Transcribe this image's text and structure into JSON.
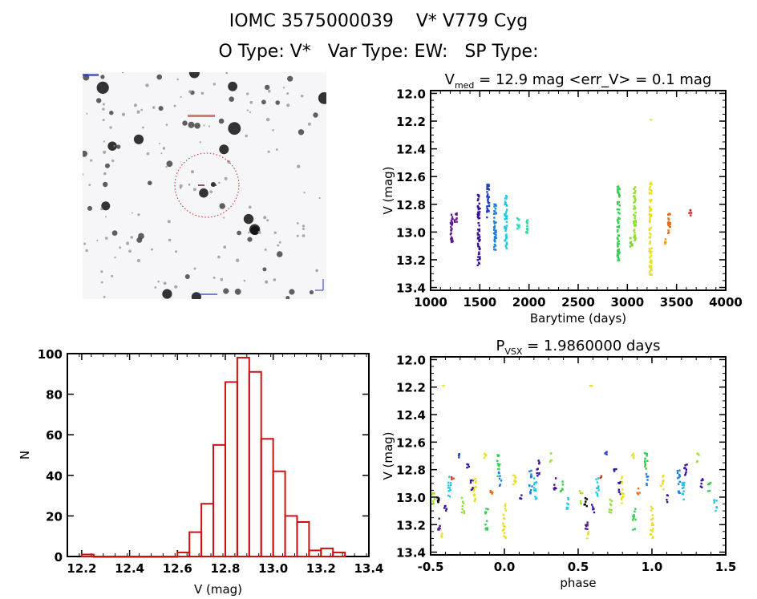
{
  "header": {
    "title": "IOMC 3575000039    V* V779 Cyg",
    "subtitle": "O Type: V*   Var Type: EW:   SP Type:"
  },
  "sky_image": {
    "description": "DSS finder chart (inverted grayscale) with red dotted circle around target",
    "marker_color": "#cc2222",
    "annotation_color": "#2233aa"
  },
  "chart_data": [
    {
      "type": "scatter",
      "id": "light-curve",
      "title_main": "V",
      "title_sub": "med",
      "title_rest": " = 12.9 mag <err_V> = 0.1 mag",
      "xlabel": "Barytime (days)",
      "ylabel": "V (mag)",
      "xlim": [
        1000,
        4000
      ],
      "ylim": [
        13.42,
        11.98
      ],
      "xticks": [
        "1000",
        "1500",
        "2000",
        "2500",
        "3000",
        "3500",
        "4000"
      ],
      "yticks": [
        "12.0",
        "12.2",
        "12.4",
        "12.6",
        "12.8",
        "13.0",
        "13.2",
        "13.4"
      ],
      "groups": [
        {
          "x": 1215,
          "ymin": 12.87,
          "ymax": 13.08,
          "color": "#5a1a8a"
        },
        {
          "x": 1255,
          "ymin": 12.86,
          "ymax": 12.93,
          "color": "#6a1a8a"
        },
        {
          "x": 1490,
          "ymin": 12.73,
          "ymax": 13.24,
          "color": "#3a10a0"
        },
        {
          "x": 1585,
          "ymin": 12.65,
          "ymax": 12.92,
          "color": "#2040c0"
        },
        {
          "x": 1655,
          "ymin": 12.79,
          "ymax": 13.14,
          "color": "#1a80e0"
        },
        {
          "x": 1765,
          "ymin": 12.73,
          "ymax": 13.12,
          "color": "#20c8e8"
        },
        {
          "x": 1890,
          "ymin": 12.9,
          "ymax": 12.98,
          "color": "#30d8c0"
        },
        {
          "x": 1975,
          "ymin": 12.91,
          "ymax": 13.01,
          "color": "#30d8a0"
        },
        {
          "x": 2910,
          "ymin": 12.67,
          "ymax": 13.23,
          "color": "#30d050"
        },
        {
          "x": 3040,
          "ymin": 13.04,
          "ymax": 13.12,
          "color": "#70d830"
        },
        {
          "x": 3075,
          "ymin": 12.67,
          "ymax": 13.06,
          "color": "#90e030"
        },
        {
          "x": 3235,
          "ymin": 12.64,
          "ymax": 13.31,
          "color": "#e8e020"
        },
        {
          "x": 3390,
          "ymin": 13.05,
          "ymax": 13.1,
          "color": "#f0a020"
        },
        {
          "x": 3425,
          "ymin": 12.86,
          "ymax": 13.02,
          "color": "#e07020"
        },
        {
          "x": 3640,
          "ymin": 12.84,
          "ymax": 12.88,
          "color": "#d02020"
        }
      ],
      "outlier": {
        "x": 3240,
        "y": 12.19,
        "color": "#e8e020"
      }
    },
    {
      "type": "bar",
      "id": "histogram",
      "xlabel": "V (mag)",
      "ylabel": "N",
      "xlim": [
        12.14,
        13.4
      ],
      "ylim": [
        0,
        100
      ],
      "xticks": [
        "12.2",
        "12.4",
        "12.6",
        "12.8",
        "13.0",
        "13.2",
        "13.4"
      ],
      "yticks": [
        "0",
        "20",
        "40",
        "60",
        "80",
        "100"
      ],
      "bin_width": 0.05,
      "bin_starts": [
        12.2,
        12.25,
        12.3,
        12.35,
        12.4,
        12.45,
        12.5,
        12.55,
        12.6,
        12.65,
        12.7,
        12.75,
        12.8,
        12.85,
        12.9,
        12.95,
        13.0,
        13.05,
        13.1,
        13.15,
        13.2,
        13.25
      ],
      "values": [
        1,
        0,
        0,
        0,
        0,
        0,
        0,
        0,
        2,
        12,
        26,
        55,
        86,
        98,
        91,
        58,
        42,
        20,
        17,
        3,
        4,
        2
      ],
      "color": "#cc1111"
    },
    {
      "type": "scatter",
      "id": "phase-curve",
      "title_main": "P",
      "title_sub": "VSX",
      "title_rest": " = 1.9860000 days",
      "xlabel": "phase",
      "ylabel": "V (mag)",
      "xlim": [
        -0.5,
        1.5
      ],
      "ylim": [
        13.42,
        11.98
      ],
      "xticks": [
        "-0.5",
        "0.0",
        "0.5",
        "1.0",
        "1.5"
      ],
      "yticks": [
        "12.0",
        "12.2",
        "12.4",
        "12.6",
        "12.8",
        "13.0",
        "13.2",
        "13.4"
      ],
      "period_days": 1.986,
      "clusters": [
        {
          "phase": -0.48,
          "ymin": 12.95,
          "ymax": 13.05,
          "color": "#a0e030"
        },
        {
          "phase": -0.45,
          "ymin": 13.0,
          "ymax": 13.08,
          "color": "#000000"
        },
        {
          "phase": -0.44,
          "ymin": 13.15,
          "ymax": 13.25,
          "color": "#5a1a8a"
        },
        {
          "phase": -0.43,
          "ymin": 13.25,
          "ymax": 13.3,
          "color": "#e8e020"
        },
        {
          "phase": -0.41,
          "ymin": 12.19,
          "ymax": 12.19,
          "color": "#e8e020"
        },
        {
          "phase": -0.4,
          "ymin": 13.05,
          "ymax": 13.12,
          "color": "#3a10a0"
        },
        {
          "phase": -0.37,
          "ymin": 12.84,
          "ymax": 13.0,
          "color": "#20c8e8"
        },
        {
          "phase": -0.35,
          "ymin": 12.83,
          "ymax": 12.87,
          "color": "#d04020"
        },
        {
          "phase": -0.31,
          "ymin": 12.66,
          "ymax": 12.72,
          "color": "#2040c0"
        },
        {
          "phase": -0.28,
          "ymin": 13.0,
          "ymax": 13.12,
          "color": "#90e030"
        },
        {
          "phase": -0.25,
          "ymin": 12.76,
          "ymax": 12.82,
          "color": "#3a10a0"
        },
        {
          "phase": -0.22,
          "ymin": 12.86,
          "ymax": 12.98,
          "color": "#3a10a0"
        },
        {
          "phase": -0.2,
          "ymin": 12.85,
          "ymax": 13.05,
          "color": "#e8e020"
        },
        {
          "phase": -0.13,
          "ymin": 12.66,
          "ymax": 12.72,
          "color": "#e8e020"
        },
        {
          "phase": -0.12,
          "ymin": 13.08,
          "ymax": 13.24,
          "color": "#30d050"
        },
        {
          "phase": -0.09,
          "ymin": 12.92,
          "ymax": 12.98,
          "color": "#e07020"
        },
        {
          "phase": -0.04,
          "ymin": 12.68,
          "ymax": 12.86,
          "color": "#30d050"
        },
        {
          "phase": -0.03,
          "ymin": 12.82,
          "ymax": 12.92,
          "color": "#1a80e0"
        },
        {
          "phase": 0.0,
          "ymin": 13.05,
          "ymax": 13.3,
          "color": "#e8e020"
        },
        {
          "phase": 0.07,
          "ymin": 12.84,
          "ymax": 12.95,
          "color": "#e8e020"
        },
        {
          "phase": 0.11,
          "ymin": 12.98,
          "ymax": 13.04,
          "color": "#3a10a0"
        },
        {
          "phase": 0.18,
          "ymin": 12.8,
          "ymax": 12.98,
          "color": "#1a80e0"
        },
        {
          "phase": 0.21,
          "ymin": 12.84,
          "ymax": 13.02,
          "color": "#20c8e8"
        },
        {
          "phase": 0.23,
          "ymin": 12.72,
          "ymax": 12.85,
          "color": "#3a10a0"
        },
        {
          "phase": 0.31,
          "ymin": 12.68,
          "ymax": 12.75,
          "color": "#a0e030"
        },
        {
          "phase": 0.34,
          "ymin": 12.86,
          "ymax": 12.95,
          "color": "#3a10a0"
        },
        {
          "phase": 0.39,
          "ymin": 12.88,
          "ymax": 12.96,
          "color": "#30d050"
        },
        {
          "phase": 0.43,
          "ymin": 13.0,
          "ymax": 13.1,
          "color": "#20c8e8"
        }
      ]
    }
  ]
}
